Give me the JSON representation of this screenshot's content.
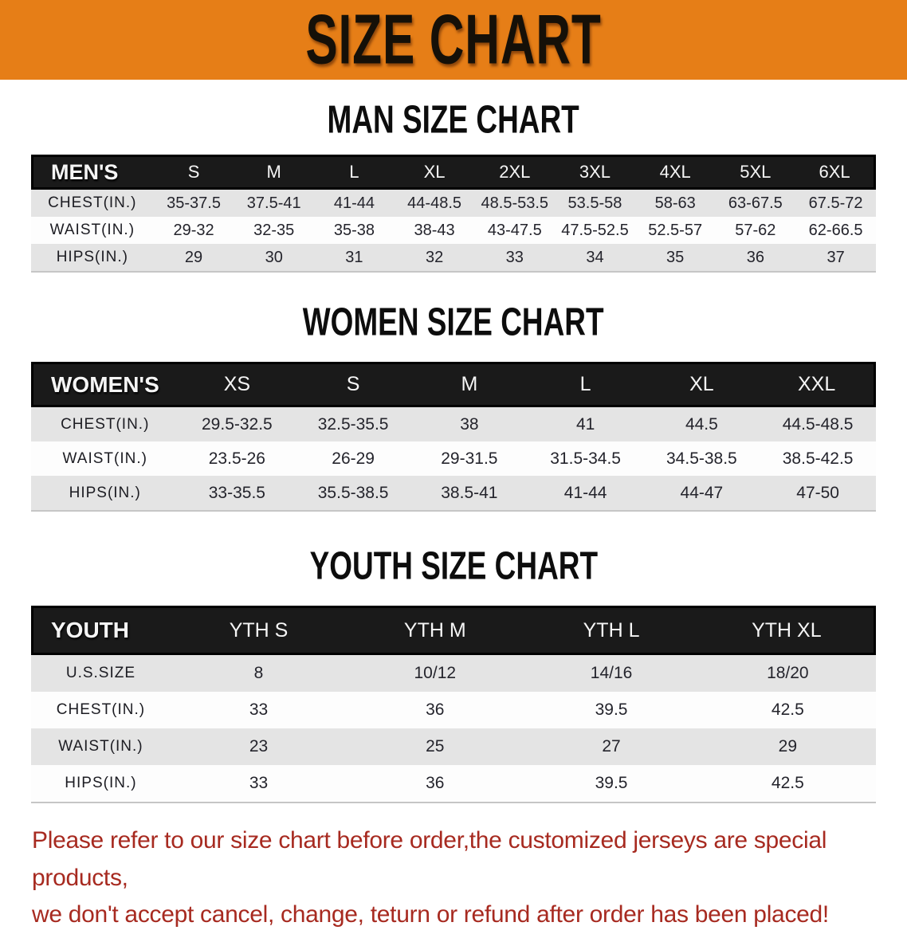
{
  "banner": {
    "title": "SIZE CHART"
  },
  "sections": [
    {
      "id": "men",
      "title": "MAN SIZE CHART",
      "table": {
        "header_label": "MEN'S",
        "columns": [
          "S",
          "M",
          "L",
          "XL",
          "2XL",
          "3XL",
          "4XL",
          "5XL",
          "6XL"
        ],
        "rows": [
          {
            "label": "CHEST(IN.)",
            "values": [
              "35-37.5",
              "37.5-41",
              "41-44",
              "44-48.5",
              "48.5-53.5",
              "53.5-58",
              "58-63",
              "63-67.5",
              "67.5-72"
            ]
          },
          {
            "label": "WAIST(IN.)",
            "values": [
              "29-32",
              "32-35",
              "35-38",
              "38-43",
              "43-47.5",
              "47.5-52.5",
              "52.5-57",
              "57-62",
              "62-66.5"
            ]
          },
          {
            "label": "HIPS(IN.)",
            "values": [
              "29",
              "30",
              "31",
              "32",
              "33",
              "34",
              "35",
              "36",
              "37"
            ]
          }
        ]
      }
    },
    {
      "id": "women",
      "title": "WOMEN SIZE CHART",
      "table": {
        "header_label": "WOMEN'S",
        "columns": [
          "XS",
          "S",
          "M",
          "L",
          "XL",
          "XXL"
        ],
        "rows": [
          {
            "label": "CHEST(IN.)",
            "values": [
              "29.5-32.5",
              "32.5-35.5",
              "38",
              "41",
              "44.5",
              "44.5-48.5"
            ]
          },
          {
            "label": "WAIST(IN.)",
            "values": [
              "23.5-26",
              "26-29",
              "29-31.5",
              "31.5-34.5",
              "34.5-38.5",
              "38.5-42.5"
            ]
          },
          {
            "label": "HIPS(IN.)",
            "values": [
              "33-35.5",
              "35.5-38.5",
              "38.5-41",
              "41-44",
              "44-47",
              "47-50"
            ]
          }
        ]
      }
    },
    {
      "id": "youth",
      "title": "YOUTH SIZE CHART",
      "table": {
        "header_label": "YOUTH",
        "columns": [
          "YTH S",
          "YTH M",
          "YTH L",
          "YTH XL"
        ],
        "rows": [
          {
            "label": "U.S.SIZE",
            "values": [
              "8",
              "10/12",
              "14/16",
              "18/20"
            ]
          },
          {
            "label": "CHEST(IN.)",
            "values": [
              "33",
              "36",
              "39.5",
              "42.5"
            ]
          },
          {
            "label": "WAIST(IN.)",
            "values": [
              "23",
              "25",
              "27",
              "29"
            ]
          },
          {
            "label": "HIPS(IN.)",
            "values": [
              "33",
              "36",
              "39.5",
              "42.5"
            ]
          }
        ]
      }
    }
  ],
  "footer_note": {
    "line1": "Please refer to our size chart before order,the customized jerseys are special products,",
    "line2": "we don't accept cancel, change, teturn or refund after order has been placed!"
  },
  "colors": {
    "banner_bg": "#E67E17",
    "header_bg": "#1A1A1A",
    "row_gray": "#E4E4E4",
    "note_red": "#A72A20"
  }
}
